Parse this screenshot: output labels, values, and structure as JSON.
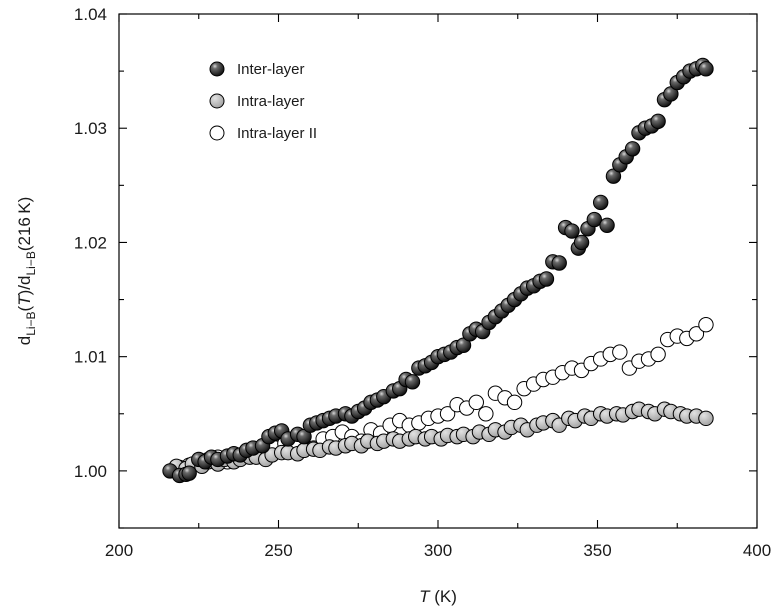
{
  "chart_data": {
    "type": "scatter",
    "xlabel": {
      "italic": "T",
      "rest": " (K)"
    },
    "ylabel": {
      "d1": "d",
      "sub1": "Li−B",
      "mid": "(",
      "T": "T",
      "slash": ")/d",
      "sub2": "Li−B",
      "end": "(216 K)"
    },
    "xlim": [
      200,
      400
    ],
    "ylim": [
      0.995,
      1.04
    ],
    "xticks": [
      200,
      250,
      300,
      350,
      400
    ],
    "xtick_labels": [
      "200",
      "250",
      "300",
      "350",
      "400"
    ],
    "yticks": [
      1.0,
      1.01,
      1.02,
      1.03,
      1.04
    ],
    "ytick_labels": [
      "1.00",
      "1.01",
      "1.02",
      "1.03",
      "1.04"
    ],
    "legend_position": "top-left",
    "series": [
      {
        "name": "Inter-layer",
        "style": "dark",
        "x": [
          216,
          219,
          221,
          222,
          225,
          227,
          229,
          231,
          234,
          236,
          238,
          240,
          242,
          245,
          247,
          249,
          251,
          253,
          256,
          258,
          260,
          262,
          264,
          266,
          268,
          271,
          273,
          275,
          277,
          279,
          281,
          283,
          286,
          288,
          290,
          292,
          294,
          296,
          298,
          300,
          302,
          304,
          306,
          308,
          310,
          312,
          314,
          316,
          318,
          320,
          322,
          324,
          326,
          328,
          330,
          332,
          334,
          336,
          338,
          340,
          342,
          344,
          345,
          347,
          349,
          351,
          353,
          355,
          357,
          359,
          361,
          363,
          365,
          367,
          369,
          371,
          373,
          375,
          377,
          379,
          381,
          383,
          384
        ],
        "y": [
          1.0,
          0.9996,
          0.9997,
          0.9998,
          1.001,
          1.0008,
          1.0012,
          1.001,
          1.0013,
          1.0015,
          1.0014,
          1.0018,
          1.002,
          1.0022,
          1.003,
          1.0033,
          1.0035,
          1.0028,
          1.0032,
          1.003,
          1.004,
          1.0042,
          1.0044,
          1.0046,
          1.0048,
          1.005,
          1.0048,
          1.0052,
          1.0055,
          1.006,
          1.0062,
          1.0065,
          1.007,
          1.0072,
          1.008,
          1.0078,
          1.009,
          1.0092,
          1.0095,
          1.01,
          1.0102,
          1.0104,
          1.0108,
          1.011,
          1.012,
          1.0124,
          1.0122,
          1.013,
          1.0135,
          1.014,
          1.0145,
          1.015,
          1.0155,
          1.016,
          1.0162,
          1.0166,
          1.0168,
          1.0183,
          1.0182,
          1.0213,
          1.021,
          1.0195,
          1.02,
          1.0212,
          1.022,
          1.0235,
          1.0215,
          1.0258,
          1.0268,
          1.0275,
          1.0282,
          1.0296,
          1.03,
          1.0302,
          1.0306,
          1.0325,
          1.033,
          1.034,
          1.0345,
          1.035,
          1.0352,
          1.0355,
          1.0352
        ]
      },
      {
        "name": "Intra-layer",
        "style": "grey",
        "x": [
          218,
          221,
          223,
          226,
          228,
          231,
          233,
          236,
          238,
          241,
          243,
          246,
          248,
          251,
          253,
          256,
          258,
          261,
          263,
          266,
          268,
          271,
          273,
          276,
          278,
          281,
          283,
          286,
          288,
          291,
          293,
          296,
          298,
          301,
          303,
          306,
          308,
          311,
          313,
          316,
          318,
          321,
          323,
          326,
          328,
          331,
          333,
          336,
          338,
          341,
          343,
          346,
          348,
          351,
          353,
          356,
          358,
          361,
          363,
          366,
          368,
          371,
          373,
          376,
          378,
          381,
          384
        ],
        "y": [
          1.0004,
          1.0002,
          1.0006,
          1.0004,
          1.0008,
          1.0006,
          1.001,
          1.0008,
          1.001,
          1.0012,
          1.0012,
          1.001,
          1.0014,
          1.0016,
          1.0016,
          1.0015,
          1.0018,
          1.0019,
          1.0018,
          1.0021,
          1.002,
          1.0022,
          1.0024,
          1.0022,
          1.0026,
          1.0024,
          1.0026,
          1.0028,
          1.0026,
          1.0028,
          1.003,
          1.0028,
          1.003,
          1.0028,
          1.0031,
          1.003,
          1.0032,
          1.003,
          1.0034,
          1.0032,
          1.0036,
          1.0034,
          1.0038,
          1.004,
          1.0036,
          1.004,
          1.0042,
          1.0044,
          1.004,
          1.0046,
          1.0044,
          1.0048,
          1.0046,
          1.005,
          1.0048,
          1.005,
          1.0049,
          1.0052,
          1.0054,
          1.0052,
          1.005,
          1.0054,
          1.0052,
          1.005,
          1.0048,
          1.0048,
          1.0046
        ]
      },
      {
        "name": "Intra-layer II",
        "style": "open",
        "x": [
          219,
          222,
          225,
          228,
          231,
          234,
          237,
          240,
          243,
          246,
          249,
          252,
          255,
          258,
          261,
          264,
          267,
          270,
          273,
          276,
          279,
          282,
          285,
          288,
          291,
          294,
          297,
          300,
          303,
          306,
          309,
          312,
          315,
          318,
          321,
          324,
          327,
          330,
          333,
          336,
          339,
          342,
          345,
          348,
          351,
          354,
          357,
          360,
          363,
          366,
          369,
          372,
          375,
          378,
          381,
          384
        ],
        "y": [
          1.0003,
          1.0005,
          1.0008,
          1.001,
          1.0012,
          1.0008,
          1.0013,
          1.0015,
          1.0018,
          1.0022,
          1.002,
          1.0024,
          1.0026,
          1.0018,
          1.002,
          1.0028,
          1.003,
          1.0034,
          1.003,
          1.0026,
          1.0036,
          1.0033,
          1.004,
          1.0044,
          1.004,
          1.0042,
          1.0046,
          1.0048,
          1.005,
          1.0058,
          1.0055,
          1.006,
          1.005,
          1.0068,
          1.0064,
          1.006,
          1.0072,
          1.0076,
          1.008,
          1.0082,
          1.0086,
          1.009,
          1.0088,
          1.0094,
          1.0098,
          1.0102,
          1.0104,
          1.009,
          1.0096,
          1.0098,
          1.0102,
          1.0115,
          1.0118,
          1.0116,
          1.012,
          1.0128
        ]
      }
    ]
  }
}
